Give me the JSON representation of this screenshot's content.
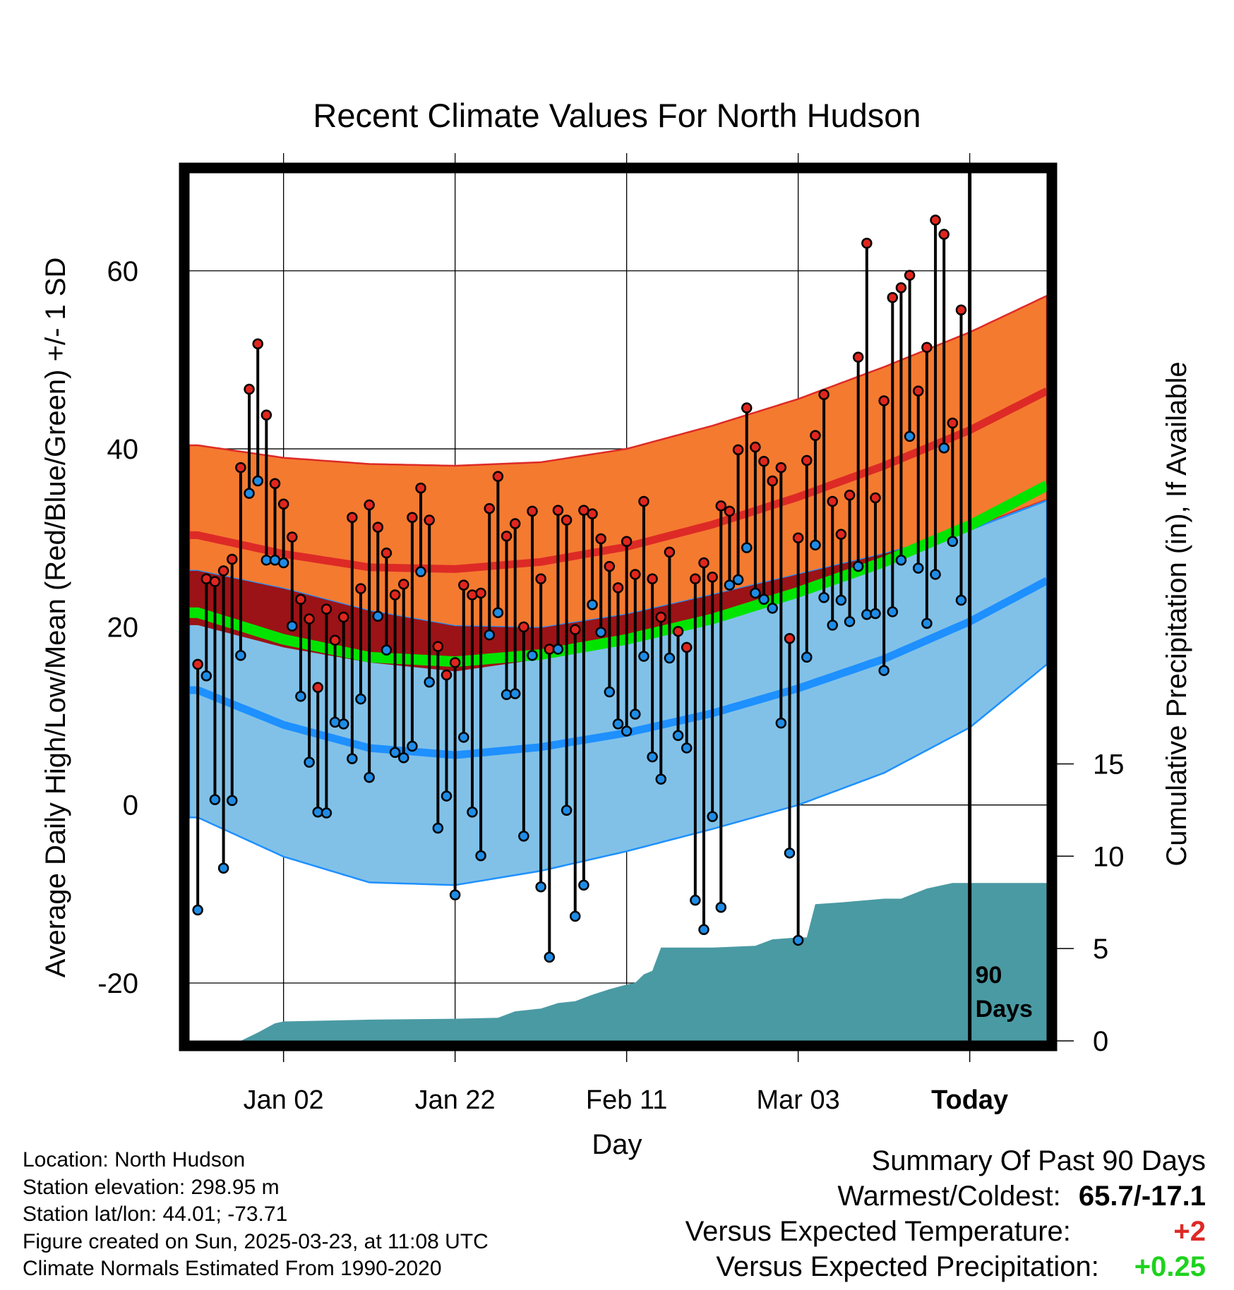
{
  "chart_data": {
    "type": "line",
    "title": "Recent Climate Values For North Hudson",
    "xlabel": "Day",
    "ylabel": "Average Daily High/Low/Mean (Red/Blue/Green) +/- 1 SD",
    "y2label": "Cumulative Precipitation (in), If Available",
    "x_tick_labels": [
      "Jan 02",
      "Jan 22",
      "Feb 11",
      "Mar 03",
      "Today"
    ],
    "x_tick_days": [
      10,
      30,
      50,
      70,
      90
    ],
    "y_ticks": [
      -20,
      0,
      20,
      40,
      60
    ],
    "y2_ticks": [
      0,
      5,
      10,
      15
    ],
    "ylim": [
      -26.5,
      71
    ],
    "y2lim": [
      0,
      47
    ],
    "xlim": [
      -1,
      99
    ],
    "today_marker": {
      "day": 90,
      "label_line1": "90",
      "label_line2": "Days"
    },
    "grid": true,
    "normals": {
      "days": [
        0,
        10,
        20,
        30,
        40,
        50,
        60,
        70,
        80,
        90,
        99
      ],
      "high_mean": [
        30.3,
        28.2,
        26.7,
        26.5,
        27.3,
        29.0,
        31.5,
        34.6,
        38.1,
        42.1,
        46.5
      ],
      "high_upper": [
        40.4,
        39.0,
        38.3,
        38.1,
        38.5,
        40.0,
        42.6,
        45.6,
        49.2,
        53.1,
        57.2
      ],
      "high_lower": [
        20.2,
        17.7,
        16.0,
        15.0,
        16.4,
        18.8,
        21.5,
        24.3,
        27.7,
        31.1,
        34.3
      ],
      "low_mean": [
        12.9,
        9.0,
        6.4,
        5.6,
        6.5,
        8.1,
        10.3,
        13.1,
        16.4,
        20.6,
        25.2
      ],
      "low_upper": [
        26.3,
        24.3,
        21.8,
        20.1,
        19.9,
        21.4,
        23.6,
        25.9,
        28.2,
        30.9,
        34.2
      ],
      "low_lower": [
        -1.4,
        -5.8,
        -8.7,
        -9.0,
        -7.4,
        -5.2,
        -2.7,
        0.0,
        3.6,
        8.7,
        15.8
      ],
      "avg_mean": [
        21.6,
        18.6,
        16.6,
        16.1,
        16.9,
        18.6,
        20.9,
        23.9,
        27.3,
        31.4,
        35.9
      ]
    },
    "observed_days": [
      0,
      1,
      2,
      3,
      4,
      5,
      6,
      7,
      8,
      9,
      10,
      11,
      12,
      13,
      14,
      15,
      16,
      17,
      18,
      19,
      20,
      21,
      22,
      23,
      24,
      25,
      26,
      27,
      28,
      29,
      30,
      31,
      32,
      33,
      34,
      35,
      36,
      37,
      38,
      39,
      40,
      41,
      42,
      43,
      44,
      45,
      46,
      47,
      48,
      49,
      50,
      51,
      52,
      53,
      54,
      55,
      56,
      57,
      58,
      59,
      60,
      61,
      62,
      63,
      64,
      65,
      66,
      67,
      68,
      69,
      70,
      71,
      72,
      73,
      74,
      75,
      76,
      77,
      78,
      79,
      80,
      81,
      82,
      83,
      84,
      85,
      86,
      87,
      88,
      89
    ],
    "observed_high": [
      15.8,
      25.4,
      25.1,
      26.3,
      27.6,
      37.9,
      46.7,
      51.8,
      43.8,
      36.1,
      33.8,
      30.1,
      23.1,
      20.9,
      13.2,
      22.0,
      18.5,
      21.1,
      32.3,
      24.3,
      33.7,
      31.2,
      28.3,
      23.6,
      24.8,
      32.3,
      35.6,
      32.0,
      17.8,
      14.6,
      16.0,
      24.7,
      23.6,
      23.8,
      33.3,
      36.9,
      30.2,
      31.6,
      20.0,
      33.0,
      25.4,
      17.5,
      33.1,
      32.0,
      19.7,
      33.1,
      32.7,
      29.9,
      26.8,
      24.4,
      29.6,
      25.9,
      34.1,
      25.4,
      21.1,
      28.4,
      19.5,
      17.7,
      25.4,
      27.2,
      25.6,
      33.6,
      33.0,
      39.9,
      44.6,
      40.2,
      38.6,
      36.4,
      37.9,
      18.7,
      30.0,
      38.7,
      41.5,
      46.1,
      34.1,
      30.4,
      34.8,
      50.3,
      63.1,
      34.5,
      45.4,
      57.0,
      58.1,
      59.5,
      46.5,
      51.4,
      65.7,
      64.1,
      42.9,
      55.6
    ],
    "observed_low": [
      -11.8,
      14.5,
      0.6,
      -7.1,
      0.5,
      16.8,
      35.0,
      36.4,
      27.5,
      27.5,
      27.2,
      20.1,
      12.2,
      4.8,
      -0.8,
      -0.9,
      9.3,
      9.1,
      5.2,
      11.9,
      3.1,
      21.2,
      17.4,
      5.9,
      5.3,
      6.6,
      26.2,
      13.8,
      -2.6,
      1.0,
      -10.1,
      7.6,
      -0.8,
      -5.7,
      19.1,
      21.6,
      12.4,
      12.5,
      -3.5,
      16.8,
      -9.2,
      -17.1,
      17.5,
      -0.6,
      -12.5,
      -9.0,
      22.5,
      19.4,
      12.7,
      9.1,
      8.3,
      10.2,
      16.7,
      5.4,
      2.9,
      16.5,
      7.8,
      6.4,
      -10.7,
      -14.0,
      -1.3,
      -11.5,
      24.7,
      25.3,
      28.9,
      23.8,
      23.1,
      22.1,
      9.2,
      -5.4,
      -15.2,
      16.6,
      29.2,
      23.3,
      20.2,
      23.0,
      20.6,
      26.8,
      21.4,
      21.5,
      15.1,
      21.7,
      27.5,
      41.4,
      26.6,
      20.4,
      25.9,
      40.1,
      29.6,
      23.0
    ],
    "precip_cumulative": {
      "days": [
        5,
        7,
        9,
        10,
        20,
        30,
        35,
        37,
        40,
        42,
        44,
        46,
        48,
        50,
        51,
        52,
        53,
        54,
        55,
        60,
        65,
        67,
        70,
        71,
        72,
        75,
        80,
        82,
        85,
        86,
        88,
        99
      ],
      "values": [
        0.0,
        0.45,
        0.95,
        1.05,
        1.15,
        1.2,
        1.25,
        1.6,
        1.75,
        2.05,
        2.15,
        2.5,
        2.8,
        3.05,
        3.15,
        3.6,
        3.8,
        5.05,
        5.05,
        5.05,
        5.15,
        5.5,
        5.6,
        5.6,
        7.4,
        7.5,
        7.7,
        7.7,
        8.25,
        8.35,
        8.55,
        8.55
      ]
    },
    "colors": {
      "high_band": "#f47a30",
      "high_mean": "#dd2a26",
      "overlap_band": "#9b1316",
      "low_band": "#81c1e8",
      "low_mean": "#1e90ff",
      "avg_mean": "#00e400",
      "precip": "#4a9aa3",
      "high_marker": "#e0261e",
      "low_marker": "#1e8ce6"
    }
  },
  "footer": {
    "location": "Location: North Hudson",
    "elevation": "Station elevation: 298.95 m",
    "latlon": "Station lat/lon: 44.01; -73.71",
    "created": "Figure created on Sun, 2025-03-23, at 11:08 UTC",
    "normals": "Climate Normals Estimated From 1990-2020"
  },
  "summary": {
    "heading": "Summary Of Past 90 Days",
    "warmest_label": "Warmest/Coldest:",
    "warmest_value": "65.7/-17.1",
    "temp_label": "Versus Expected Temperature:",
    "temp_value": "+2",
    "temp_color": "#dd2a26",
    "precip_label": "Versus Expected Precipitation:",
    "precip_value": "+0.25",
    "precip_color": "#1ed21e"
  }
}
